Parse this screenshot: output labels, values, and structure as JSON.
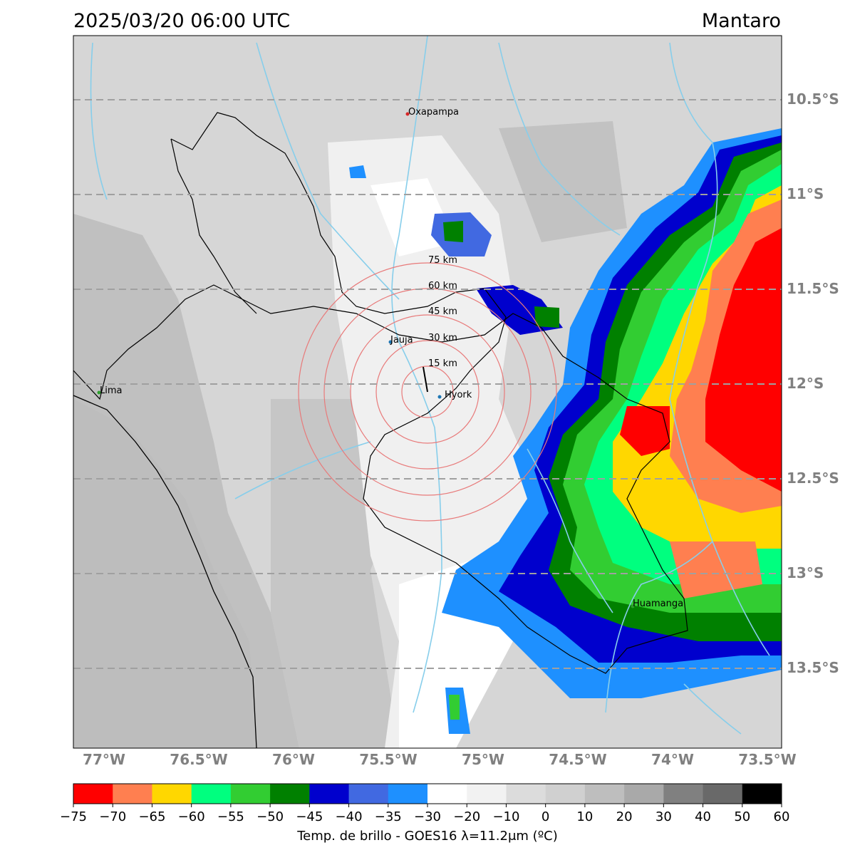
{
  "header": {
    "timestamp": "2025/03/20 06:00 UTC",
    "region": "Mantaro"
  },
  "map": {
    "latitudes": [
      "10.5°S",
      "11°S",
      "11.5°S",
      "12°S",
      "12.5°S",
      "13°S",
      "13.5°S"
    ],
    "longitudes": [
      "77°W",
      "76.5°W",
      "76°W",
      "75.5°W",
      "75°W",
      "74.5°W",
      "74°W",
      "73.5°W"
    ],
    "cities": [
      {
        "name": "Oxapampa",
        "color": "#d62728"
      },
      {
        "name": "Jauja",
        "color": "#1f77b4"
      },
      {
        "name": "Hyork",
        "color": "#1f77b4"
      },
      {
        "name": "Lima",
        "color": "#2ca02c"
      },
      {
        "name": "Huamanga",
        "color": "#2ca02c"
      }
    ],
    "range_rings": [
      "15 km",
      "30 km",
      "45 km",
      "60 km",
      "75 km"
    ],
    "ring_color": "#e87a7a",
    "river_color": "#87ceeb"
  },
  "colorbar": {
    "label": "Temp. de brillo - GOES16 λ=11.2μm (ºC)",
    "ticks": [
      "−75",
      "−70",
      "−65",
      "−60",
      "−55",
      "−50",
      "−45",
      "−40",
      "−35",
      "−30",
      "−20",
      "−10",
      "0",
      "10",
      "20",
      "30",
      "40",
      "50",
      "60"
    ],
    "colors": [
      "#ff0000",
      "#ff7f50",
      "#ffd700",
      "#00ff7f",
      "#32cd32",
      "#008000",
      "#0000cd",
      "#4169e1",
      "#1e90ff",
      "#ffffff",
      "#f2f2f2",
      "#dcdcdc",
      "#d0d0d0",
      "#bebebe",
      "#a9a9a9",
      "#808080",
      "#696969",
      "#000000"
    ]
  }
}
